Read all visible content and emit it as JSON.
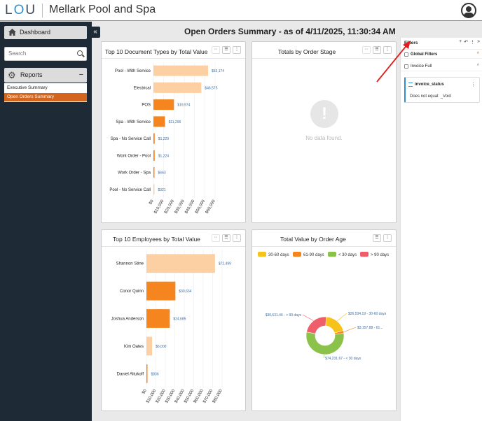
{
  "app": {
    "title": "Mellark Pool and Spa",
    "logo_l": "L",
    "logo_o": "O",
    "logo_u": "U"
  },
  "sidebar": {
    "dashboard_label": "Dashboard",
    "search_placeholder": "Search",
    "reports_label": "Reports",
    "collapse_symbol": "«",
    "reports_toggle": "−",
    "reports": [
      "Executive Summary",
      "Open Orders Summary"
    ]
  },
  "main": {
    "title": "Open Orders Summary - as of 4/11/2025, 11:30:34 AM"
  },
  "panels": {
    "doc_types": {
      "title": "Top 10 Document Types by Total Value"
    },
    "order_stage": {
      "title": "Totals by Order Stage",
      "nodata_icon": "!",
      "nodata_text": "No data found."
    },
    "employees": {
      "title": "Top 10 Employees by Total Value"
    },
    "order_age": {
      "title": "Total Value by Order Age"
    }
  },
  "filters": {
    "title": "Filters",
    "tools": [
      "+",
      "↶",
      "⋮",
      "»"
    ],
    "global_label": "Global Filters",
    "invoice_label": "Invoice Full",
    "card_name": "invoice_status",
    "card_condition": "Does not equal: _Void",
    "chevron": "^",
    "card_menu": "⋮"
  },
  "chart_data": [
    {
      "type": "bar",
      "orientation": "horizontal",
      "title": "Top 10 Document Types by Total Value",
      "categories": [
        "Pool - With Service",
        "Electrical",
        "POS",
        "Spa - With Service",
        "Spa - No Service Call",
        "Work Order - Pool",
        "Work Order - Spa",
        "Pool - No Service Call"
      ],
      "values": [
        53174,
        46575,
        19974,
        11296,
        1229,
        1224,
        663,
        321
      ],
      "value_labels": [
        "$53,174",
        "$46,575",
        "$19,974",
        "$11,296",
        "$1,229",
        "$1,224",
        "$663",
        "$321"
      ],
      "colors": [
        "#fdd0a4",
        "#fdd0a4",
        "#f5851f",
        "#f5851f",
        "#f5851f",
        "#f5851f",
        "#f5851f",
        "#fdd0a4"
      ],
      "xlim": [
        0,
        60000
      ],
      "xticks": [
        "$0",
        "$10,000",
        "$20,000",
        "$30,000",
        "$40,000",
        "$50,000",
        "$60,000"
      ]
    },
    {
      "type": "bar",
      "orientation": "horizontal",
      "title": "Top 10 Employees by Total Value",
      "categories": [
        "Shannon Stine",
        "Conor Quinn",
        "Joshua Anderson",
        "Kim Oates",
        "Daniel Altukoff"
      ],
      "values": [
        72499,
        30634,
        24685,
        6000,
        836
      ],
      "value_labels": [
        "$72,499",
        "$30,634",
        "$24,685",
        "$6,000",
        "$836"
      ],
      "colors": [
        "#fdd0a4",
        "#f5851f",
        "#f5851f",
        "#fdd0a4",
        "#f5851f"
      ],
      "xlim": [
        0,
        80000
      ],
      "xticks": [
        "$0",
        "$10,000",
        "$20,000",
        "$30,000",
        "$40,000",
        "$50,000",
        "$60,000",
        "$70,000",
        "$80,000"
      ]
    },
    {
      "type": "pie",
      "donut": true,
      "title": "Total Value by Order Age",
      "legend_position": "top",
      "labels": [
        "30-60 days",
        "61-90 days",
        "< 30 days",
        "> 90 days"
      ],
      "colors": [
        "#f7c31b",
        "#f5851f",
        "#8bc34a",
        "#ef5f6b"
      ],
      "values": [
        26534.19,
        3157.88,
        74231.67,
        30631.46
      ],
      "slice_labels": [
        "$26,534.19 - 30-60 days",
        "$3,157.88 - 61...",
        "$74,231.67 - < 30 days",
        "$30,631.46 - > 90 days"
      ]
    }
  ]
}
